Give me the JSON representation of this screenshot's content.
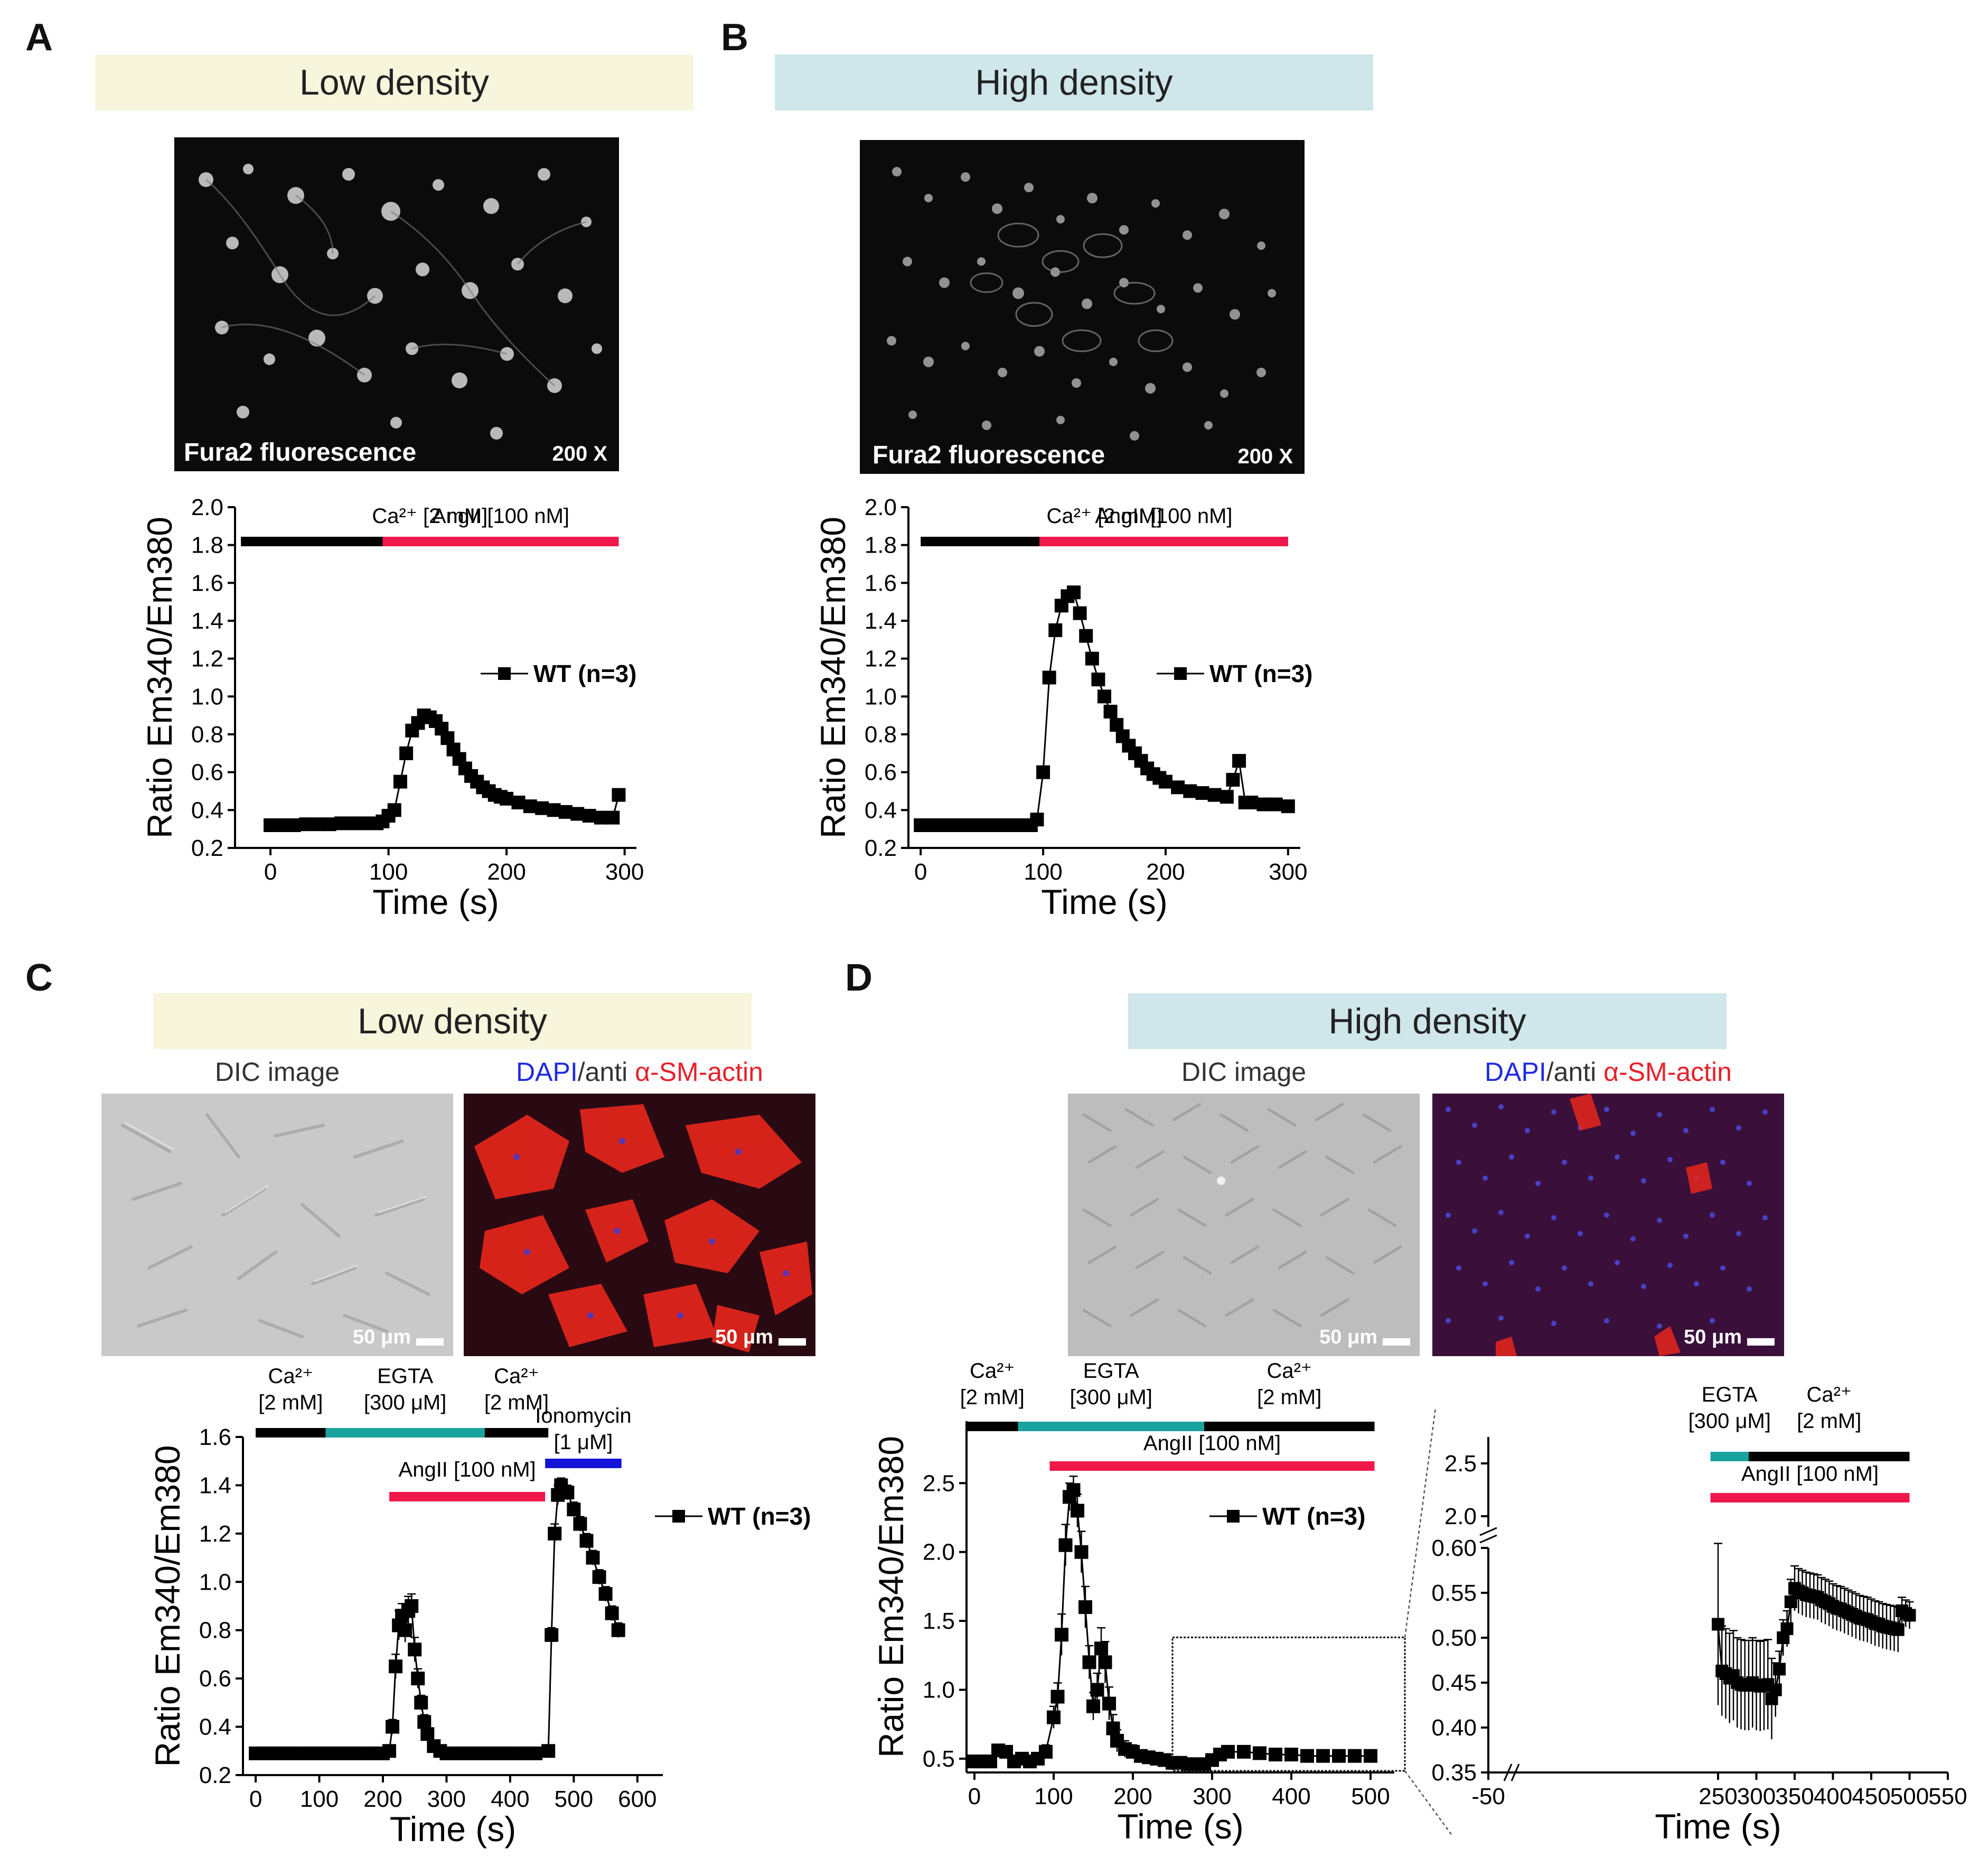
{
  "panels": {
    "A": {
      "letter": "A",
      "banner": "Low density",
      "image_caption": "Fura2 fluorescence",
      "magnification": "200 X"
    },
    "B": {
      "letter": "B",
      "banner": "High density",
      "image_caption": "Fura2 fluorescence",
      "magnification": "200 X"
    },
    "C": {
      "letter": "C",
      "banner": "Low density",
      "dic_label": "DIC image",
      "stain_label": {
        "dapi": "DAPI",
        "sep": "/anti ",
        "actin": "α-SM-actin"
      },
      "scale": "50 μm"
    },
    "D": {
      "letter": "D",
      "banner": "High density",
      "dic_label": "DIC image",
      "stain_label": {
        "dapi": "DAPI",
        "sep": "/anti ",
        "actin": "α-SM-actin"
      },
      "scale": "50 μm"
    }
  },
  "colors": {
    "black_bar": "#000000",
    "red_bar": "#f0174a",
    "teal_bar": "#1aa39e",
    "blue_bar": "#1414d8",
    "series": "#000000"
  },
  "chart_data": [
    {
      "id": "A",
      "type": "line",
      "xlabel": "Time (s)",
      "ylabel": "Ratio Em340/Em380",
      "xlim": [
        -30,
        310
      ],
      "ylim": [
        0.2,
        2.0
      ],
      "xticks": [
        0,
        100,
        200,
        300
      ],
      "yticks": [
        0.2,
        0.4,
        0.6,
        0.8,
        1.0,
        1.2,
        1.4,
        1.6,
        1.8,
        2.0
      ],
      "legend": "WT (n=3)",
      "bars": [
        {
          "label_lines": [
            "Ca²⁺ [2 mM]"
          ],
          "from": -25,
          "to": 295,
          "color": "black"
        },
        {
          "label_lines": [
            "AngII [100 nM]"
          ],
          "from": 95,
          "to": 295,
          "color": "red"
        }
      ],
      "series": [
        {
          "name": "WT (n=3)",
          "x": [
            0,
            10,
            20,
            30,
            40,
            50,
            60,
            70,
            80,
            90,
            95,
            100,
            105,
            110,
            115,
            120,
            125,
            130,
            135,
            140,
            145,
            150,
            155,
            160,
            165,
            170,
            175,
            180,
            185,
            190,
            195,
            200,
            210,
            220,
            230,
            240,
            250,
            260,
            270,
            280,
            290,
            295
          ],
          "y": [
            0.32,
            0.32,
            0.32,
            0.325,
            0.325,
            0.325,
            0.33,
            0.33,
            0.33,
            0.33,
            0.34,
            0.37,
            0.4,
            0.55,
            0.7,
            0.82,
            0.86,
            0.9,
            0.89,
            0.87,
            0.83,
            0.78,
            0.72,
            0.67,
            0.62,
            0.58,
            0.55,
            0.52,
            0.5,
            0.48,
            0.47,
            0.46,
            0.44,
            0.42,
            0.41,
            0.4,
            0.39,
            0.38,
            0.37,
            0.36,
            0.36,
            0.48
          ]
        }
      ]
    },
    {
      "id": "B",
      "type": "line",
      "xlabel": "Time (s)",
      "ylabel": "Ratio Em340/Em380",
      "xlim": [
        -10,
        310
      ],
      "ylim": [
        0.2,
        2.0
      ],
      "xticks": [
        0,
        100,
        200,
        300
      ],
      "yticks": [
        0.2,
        0.4,
        0.6,
        0.8,
        1.0,
        1.2,
        1.4,
        1.6,
        1.8,
        2.0
      ],
      "legend": "WT (n=3)",
      "bars": [
        {
          "label_lines": [
            "Ca²⁺ [2 mM]"
          ],
          "from": 0,
          "to": 300,
          "color": "black"
        },
        {
          "label_lines": [
            "AngII [100 nM]"
          ],
          "from": 97,
          "to": 300,
          "color": "red"
        }
      ],
      "series": [
        {
          "name": "WT (n=3)",
          "x": [
            0,
            10,
            20,
            30,
            40,
            50,
            60,
            70,
            80,
            90,
            95,
            100,
            105,
            110,
            115,
            120,
            125,
            130,
            135,
            140,
            145,
            150,
            155,
            160,
            165,
            170,
            175,
            180,
            185,
            190,
            195,
            200,
            210,
            220,
            230,
            240,
            250,
            255,
            260,
            265,
            270,
            280,
            290,
            300
          ],
          "y": [
            0.32,
            0.32,
            0.32,
            0.32,
            0.32,
            0.32,
            0.32,
            0.32,
            0.32,
            0.32,
            0.35,
            0.6,
            1.1,
            1.35,
            1.48,
            1.53,
            1.55,
            1.44,
            1.32,
            1.2,
            1.09,
            1.0,
            0.92,
            0.85,
            0.79,
            0.74,
            0.7,
            0.66,
            0.62,
            0.59,
            0.57,
            0.55,
            0.52,
            0.5,
            0.49,
            0.48,
            0.47,
            0.56,
            0.66,
            0.44,
            0.44,
            0.43,
            0.43,
            0.42
          ]
        }
      ]
    },
    {
      "id": "C",
      "type": "line",
      "xlabel": "Time (s)",
      "ylabel": "Ratio Em340/Em380",
      "xlim": [
        -20,
        640
      ],
      "ylim": [
        0.2,
        1.6
      ],
      "xticks": [
        0,
        100,
        200,
        300,
        400,
        500,
        600
      ],
      "yticks": [
        0.2,
        0.4,
        0.6,
        0.8,
        1.0,
        1.2,
        1.4,
        1.6
      ],
      "legend": "WT (n=3)",
      "bars": [
        {
          "label_lines": [
            "Ca²⁺",
            "[2 mM]"
          ],
          "from": 0,
          "to": 110,
          "color": "black"
        },
        {
          "label_lines": [
            "EGTA",
            "[300 μM]"
          ],
          "from": 110,
          "to": 360,
          "color": "teal"
        },
        {
          "label_lines": [
            "Ca²⁺",
            "[2 mM]"
          ],
          "from": 360,
          "to": 460,
          "color": "black"
        },
        {
          "label_lines": [
            "Ionomycin",
            "[1 μM]"
          ],
          "from": 455,
          "to": 575,
          "color": "blue",
          "row": 2
        },
        {
          "label_lines": [
            "AngII [100 nM]"
          ],
          "from": 210,
          "to": 455,
          "color": "red",
          "row": 3
        }
      ],
      "series": [
        {
          "name": "WT (n=3)",
          "x": [
            0,
            20,
            40,
            60,
            80,
            100,
            120,
            140,
            160,
            180,
            200,
            210,
            215,
            220,
            225,
            230,
            235,
            240,
            245,
            250,
            255,
            260,
            265,
            270,
            280,
            290,
            300,
            320,
            340,
            360,
            380,
            400,
            420,
            440,
            460,
            465,
            470,
            475,
            480,
            490,
            500,
            510,
            520,
            530,
            540,
            550,
            560,
            570
          ],
          "y": [
            0.29,
            0.29,
            0.29,
            0.29,
            0.29,
            0.29,
            0.29,
            0.29,
            0.29,
            0.29,
            0.29,
            0.3,
            0.4,
            0.65,
            0.82,
            0.86,
            0.8,
            0.88,
            0.9,
            0.72,
            0.6,
            0.5,
            0.42,
            0.37,
            0.32,
            0.3,
            0.29,
            0.29,
            0.29,
            0.29,
            0.29,
            0.29,
            0.29,
            0.29,
            0.3,
            0.78,
            1.2,
            1.36,
            1.4,
            1.37,
            1.3,
            1.24,
            1.17,
            1.1,
            1.02,
            0.95,
            0.87,
            0.8
          ],
          "err": [
            0.01,
            0.01,
            0.01,
            0.01,
            0.01,
            0.01,
            0.01,
            0.01,
            0.01,
            0.01,
            0.01,
            0.01,
            0.03,
            0.05,
            0.06,
            0.05,
            0.05,
            0.06,
            0.05,
            0.05,
            0.04,
            0.03,
            0.03,
            0.02,
            0.02,
            0.01,
            0.01,
            0.01,
            0.01,
            0.01,
            0.02,
            0.01,
            0.01,
            0.01,
            0.01,
            0.03,
            0.04,
            0.04,
            0.03,
            0.03,
            0.03,
            0.03,
            0.03,
            0.03,
            0.03,
            0.03,
            0.03,
            0.03
          ]
        }
      ]
    },
    {
      "id": "D-main",
      "type": "line",
      "xlabel": "Time (s)",
      "ylabel": "Ratio Em340/Em380",
      "xlim": [
        -10,
        530
      ],
      "ylim": [
        0.4,
        2.95
      ],
      "xticks": [
        0,
        100,
        200,
        300,
        400,
        500
      ],
      "yticks": [
        0.5,
        1.0,
        1.5,
        2.0,
        2.5
      ],
      "legend": "WT (n=3)",
      "bars": [
        {
          "label_lines": [
            "Ca²⁺",
            "[2 mM]"
          ],
          "from": -10,
          "to": 55,
          "color": "black"
        },
        {
          "label_lines": [
            "EGTA",
            "[300 μM]"
          ],
          "from": 55,
          "to": 290,
          "color": "teal"
        },
        {
          "label_lines": [
            "Ca²⁺",
            "[2 mM]"
          ],
          "from": 290,
          "to": 505,
          "color": "black"
        },
        {
          "label_lines": [
            "AngII [100 nM]"
          ],
          "from": 95,
          "to": 505,
          "color": "red",
          "row": 2
        }
      ],
      "zoom_box": {
        "x": [
          250,
          555
        ],
        "y": [
          0.45,
          1.38
        ]
      },
      "series": [
        {
          "name": "WT (n=3)",
          "x": [
            0,
            10,
            20,
            30,
            40,
            50,
            60,
            70,
            80,
            90,
            100,
            105,
            110,
            115,
            120,
            125,
            130,
            135,
            140,
            145,
            150,
            155,
            160,
            165,
            170,
            175,
            180,
            190,
            200,
            210,
            220,
            230,
            240,
            250,
            260,
            270,
            280,
            290,
            300,
            310,
            320,
            340,
            360,
            380,
            400,
            420,
            440,
            460,
            480,
            500
          ],
          "y": [
            0.48,
            0.48,
            0.48,
            0.56,
            0.55,
            0.48,
            0.5,
            0.48,
            0.5,
            0.55,
            0.8,
            0.95,
            1.4,
            2.05,
            2.4,
            2.45,
            2.3,
            2.0,
            1.6,
            1.2,
            0.88,
            1.0,
            1.3,
            1.2,
            0.9,
            0.72,
            0.63,
            0.57,
            0.55,
            0.52,
            0.51,
            0.5,
            0.49,
            0.47,
            0.47,
            0.46,
            0.46,
            0.46,
            0.49,
            0.53,
            0.55,
            0.55,
            0.54,
            0.53,
            0.53,
            0.52,
            0.52,
            0.52,
            0.52,
            0.52
          ],
          "err": [
            0.02,
            0.02,
            0.02,
            0.04,
            0.03,
            0.03,
            0.03,
            0.03,
            0.03,
            0.05,
            0.08,
            0.1,
            0.15,
            0.15,
            0.1,
            0.1,
            0.12,
            0.15,
            0.15,
            0.12,
            0.1,
            0.12,
            0.15,
            0.15,
            0.12,
            0.1,
            0.08,
            0.06,
            0.05,
            0.04,
            0.03,
            0.03,
            0.03,
            0.03,
            0.02,
            0.02,
            0.02,
            0.02,
            0.02,
            0.02,
            0.02,
            0.02,
            0.02,
            0.02,
            0.02,
            0.02,
            0.02,
            0.02,
            0.02,
            0.02
          ]
        }
      ]
    },
    {
      "id": "D-inset",
      "type": "line",
      "xlabel": "Time (s)",
      "ylabel": "",
      "xlim": [
        -50,
        550
      ],
      "ylim": [
        0.35,
        0.6
      ],
      "xticks": [
        -50,
        250,
        300,
        350,
        400,
        450,
        500,
        550
      ],
      "yticks": [
        0.35,
        0.4,
        0.45,
        0.5,
        0.55,
        0.6
      ],
      "upper_yticks": [
        2.0,
        2.5
      ],
      "upper_ylim": [
        1.9,
        2.75
      ],
      "bars": [
        {
          "label_lines": [
            "EGTA",
            "[300 μM]"
          ],
          "from": 240,
          "to": 290,
          "color": "teal"
        },
        {
          "label_lines": [
            "Ca²⁺",
            "[2 mM]"
          ],
          "from": 290,
          "to": 500,
          "color": "black"
        },
        {
          "label_lines": [
            "AngII [100 nM]"
          ],
          "from": 240,
          "to": 500,
          "color": "red",
          "row": 2
        }
      ],
      "series": [
        {
          "name": "WT (n=3)",
          "x": [
            250,
            255,
            260,
            265,
            270,
            275,
            280,
            285,
            290,
            295,
            300,
            305,
            310,
            315,
            320,
            325,
            330,
            335,
            340,
            345,
            350,
            355,
            360,
            365,
            370,
            375,
            380,
            385,
            390,
            395,
            400,
            405,
            410,
            415,
            420,
            425,
            430,
            435,
            440,
            445,
            450,
            455,
            460,
            465,
            470,
            475,
            480,
            485,
            490,
            495,
            500
          ],
          "y": [
            0.515,
            0.463,
            0.46,
            0.455,
            0.458,
            0.45,
            0.448,
            0.447,
            0.447,
            0.45,
            0.447,
            0.446,
            0.447,
            0.448,
            0.432,
            0.442,
            0.465,
            0.5,
            0.51,
            0.54,
            0.555,
            0.552,
            0.55,
            0.548,
            0.547,
            0.546,
            0.545,
            0.542,
            0.54,
            0.538,
            0.535,
            0.533,
            0.532,
            0.53,
            0.528,
            0.526,
            0.524,
            0.522,
            0.521,
            0.52,
            0.518,
            0.516,
            0.515,
            0.513,
            0.512,
            0.511,
            0.51,
            0.509,
            0.53,
            0.527,
            0.525
          ],
          "err": [
            0.09,
            0.05,
            0.05,
            0.05,
            0.05,
            0.05,
            0.05,
            0.05,
            0.05,
            0.05,
            0.05,
            0.05,
            0.05,
            0.05,
            0.045,
            0.03,
            0.02,
            0.02,
            0.02,
            0.025,
            0.025,
            0.025,
            0.025,
            0.025,
            0.025,
            0.025,
            0.025,
            0.025,
            0.025,
            0.025,
            0.025,
            0.025,
            0.025,
            0.025,
            0.025,
            0.025,
            0.025,
            0.025,
            0.025,
            0.025,
            0.025,
            0.025,
            0.025,
            0.025,
            0.025,
            0.025,
            0.025,
            0.025,
            0.015,
            0.015,
            0.015
          ]
        }
      ]
    }
  ]
}
